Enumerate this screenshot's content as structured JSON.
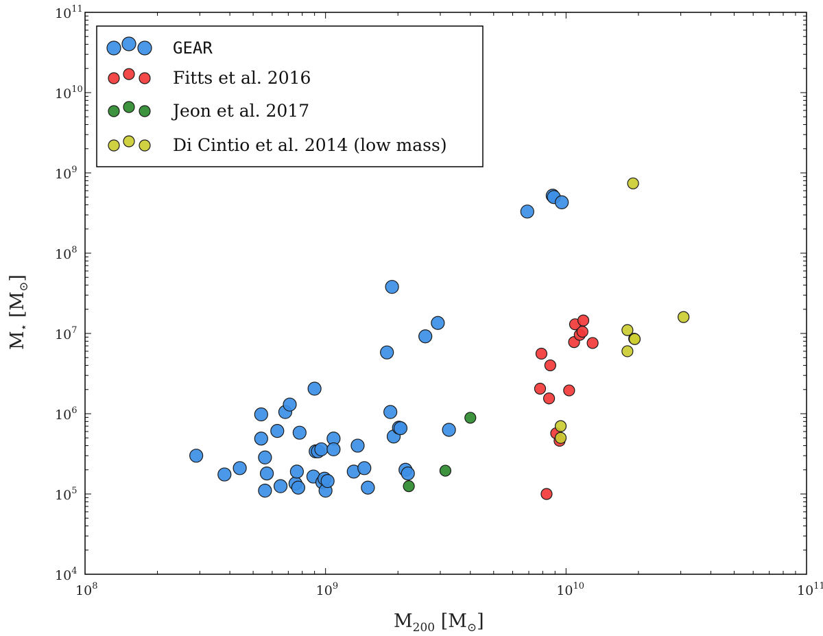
{
  "chart_data": {
    "type": "scatter",
    "x_scale": "log",
    "y_scale": "log",
    "xlim": [
      100000000.0,
      100000000000.0
    ],
    "ylim": [
      10000.0,
      100000000000.0
    ],
    "x_ticks": [
      {
        "base": "10",
        "exp": "8",
        "value": 100000000.0
      },
      {
        "base": "10",
        "exp": "9",
        "value": 1000000000.0
      },
      {
        "base": "10",
        "exp": "10",
        "value": 10000000000.0
      },
      {
        "base": "10",
        "exp": "11",
        "value": 100000000000.0
      }
    ],
    "y_ticks": [
      {
        "base": "10",
        "exp": "4",
        "value": 10000.0
      },
      {
        "base": "10",
        "exp": "5",
        "value": 100000.0
      },
      {
        "base": "10",
        "exp": "6",
        "value": 1000000.0
      },
      {
        "base": "10",
        "exp": "7",
        "value": 10000000.0
      },
      {
        "base": "10",
        "exp": "8",
        "value": 100000000.0
      },
      {
        "base": "10",
        "exp": "9",
        "value": 1000000000.0
      },
      {
        "base": "10",
        "exp": "10",
        "value": 10000000000.0
      },
      {
        "base": "10",
        "exp": "11",
        "value": 100000000000.0
      }
    ],
    "xlabel": {
      "main": "M",
      "sub": "200",
      "unit_open": " [M",
      "unit_sub": "⊙",
      "unit_close": "]"
    },
    "ylabel": {
      "main": "M",
      "sub": "⋆",
      "unit_open": " [M",
      "unit_sub": "⊙",
      "unit_close": "]"
    },
    "legend_position": "upper-left",
    "series": [
      {
        "name": "GEAR",
        "color": "#3d8fe6",
        "marker_size": "large",
        "points": [
          [
            290000000.0,
            300000.0
          ],
          [
            380000000.0,
            175000.0
          ],
          [
            440000000.0,
            210000.0
          ],
          [
            540000000.0,
            980000.0
          ],
          [
            540000000.0,
            490000.0
          ],
          [
            560000000.0,
            285000.0
          ],
          [
            560000000.0,
            110000.0
          ],
          [
            570000000.0,
            180000.0
          ],
          [
            630000000.0,
            610000.0
          ],
          [
            650000000.0,
            125000.0
          ],
          [
            680000000.0,
            1050000.0
          ],
          [
            710000000.0,
            1300000.0
          ],
          [
            750000000.0,
            135000.0
          ],
          [
            760000000.0,
            190000.0
          ],
          [
            770000000.0,
            120000.0
          ],
          [
            780000000.0,
            580000.0
          ],
          [
            890000000.0,
            165000.0
          ],
          [
            900000000.0,
            2050000.0
          ],
          [
            910000000.0,
            340000.0
          ],
          [
            930000000.0,
            340000.0
          ],
          [
            960000000.0,
            360000.0
          ],
          [
            970000000.0,
            140000.0
          ],
          [
            990000000.0,
            155000.0
          ],
          [
            1000000000.0,
            110000.0
          ],
          [
            1020000000.0,
            145000.0
          ],
          [
            1080000000.0,
            490000.0
          ],
          [
            1080000000.0,
            360000.0
          ],
          [
            1310000000.0,
            190000.0
          ],
          [
            1360000000.0,
            400000.0
          ],
          [
            1450000000.0,
            210000.0
          ],
          [
            1500000000.0,
            120000.0
          ],
          [
            1800000000.0,
            5800000.0
          ],
          [
            1860000000.0,
            1050000.0
          ],
          [
            1890000000.0,
            38000000.0
          ],
          [
            1920000000.0,
            520000.0
          ],
          [
            2020000000.0,
            670000.0
          ],
          [
            2050000000.0,
            660000.0
          ],
          [
            2150000000.0,
            200000.0
          ],
          [
            2200000000.0,
            180000.0
          ],
          [
            2600000000.0,
            9200000.0
          ],
          [
            2930000000.0,
            13500000.0
          ],
          [
            3260000000.0,
            630000.0
          ],
          [
            6900000000.0,
            330000000.0
          ],
          [
            8800000000.0,
            520000000.0
          ],
          [
            8900000000.0,
            500000000.0
          ],
          [
            9600000000.0,
            430000000.0
          ]
        ]
      },
      {
        "name": "Fitts et al. 2016",
        "color": "#f23a3a",
        "marker_size": "small",
        "points": [
          [
            7900000000.0,
            5600000.0
          ],
          [
            7800000000.0,
            2050000.0
          ],
          [
            8300000000.0,
            100000.0
          ],
          [
            8500000000.0,
            1550000.0
          ],
          [
            8600000000.0,
            4000000.0
          ],
          [
            9100000000.0,
            570000.0
          ],
          [
            9400000000.0,
            460000.0
          ],
          [
            10300000000.0,
            1950000.0
          ],
          [
            10800000000.0,
            7800000.0
          ],
          [
            10900000000.0,
            13000000.0
          ],
          [
            11400000000.0,
            9600000.0
          ],
          [
            11700000000.0,
            10500000.0
          ],
          [
            11800000000.0,
            14500000.0
          ],
          [
            12900000000.0,
            7600000.0
          ]
        ]
      },
      {
        "name": "Jeon et al. 2017",
        "color": "#2e8b2e",
        "marker_size": "small",
        "points": [
          [
            2220000000.0,
            125000.0
          ],
          [
            3150000000.0,
            195000.0
          ],
          [
            4000000000.0,
            890000.0
          ]
        ]
      },
      {
        "name": "Di Cintio et al. 2014 (low mass)",
        "color": "#cccc33",
        "marker_size": "small",
        "points": [
          [
            9500000000.0,
            700000.0
          ],
          [
            9500000000.0,
            500000.0
          ],
          [
            18000000000.0,
            11000000.0
          ],
          [
            18000000000.0,
            6000000.0
          ],
          [
            19200000000.0,
            8600000.0
          ],
          [
            19300000000.0,
            8500000.0
          ],
          [
            19000000000.0,
            740000000.0
          ],
          [
            30800000000.0,
            16000000.0
          ]
        ]
      }
    ]
  }
}
